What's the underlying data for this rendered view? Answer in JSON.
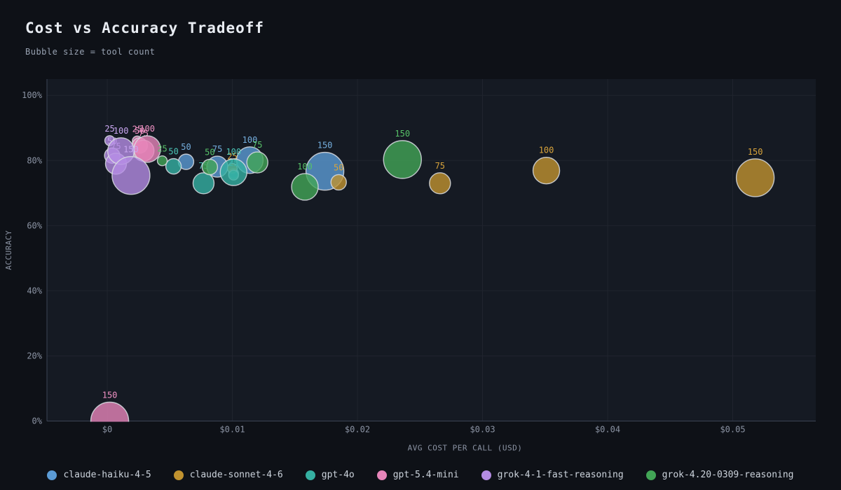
{
  "title": "Cost vs Accuracy Tradeoff",
  "subtitle": "Bubble size = tool count",
  "axes": {
    "x_label": "AVG COST PER CALL (USD)",
    "y_label": "ACCURACY",
    "x_ticks": [
      {
        "value": 0.0,
        "label": "$0"
      },
      {
        "value": 0.01,
        "label": "$0.01"
      },
      {
        "value": 0.02,
        "label": "$0.02"
      },
      {
        "value": 0.03,
        "label": "$0.03"
      },
      {
        "value": 0.04,
        "label": "$0.04"
      },
      {
        "value": 0.05,
        "label": "$0.05"
      }
    ],
    "y_ticks": [
      {
        "value": 0,
        "label": "0%"
      },
      {
        "value": 20,
        "label": "20%"
      },
      {
        "value": 40,
        "label": "40%"
      },
      {
        "value": 60,
        "label": "60%"
      },
      {
        "value": 80,
        "label": "80%"
      },
      {
        "value": 100,
        "label": "100%"
      }
    ],
    "x_range": [
      0,
      0.0566
    ],
    "y_range": [
      0,
      105
    ]
  },
  "chart_data": {
    "type": "scatter",
    "subtype": "bubble",
    "title": "Cost vs Accuracy Tradeoff",
    "xlabel": "AVG COST PER CALL (USD)",
    "ylabel": "ACCURACY",
    "size_field": "tools",
    "size_note": "Bubble size = tool count",
    "grid": true,
    "legend_position": "bottom",
    "series": [
      {
        "name": "claude-haiku-4-5",
        "color": "#5b9bd5",
        "label_color": "#74aede",
        "points": [
          {
            "cost": 0.0101,
            "accuracy": 76.0,
            "tools": 25
          },
          {
            "cost": 0.0063,
            "accuracy": 79.6,
            "tools": 50
          },
          {
            "cost": 0.0088,
            "accuracy": 78.1,
            "tools": 75
          },
          {
            "cost": 0.0114,
            "accuracy": 80.1,
            "tools": 100
          },
          {
            "cost": 0.0174,
            "accuracy": 76.7,
            "tools": 150
          }
        ]
      },
      {
        "name": "claude-sonnet-4-6",
        "color": "#c0922f",
        "label_color": "#d9a43b",
        "points": [
          {
            "cost": 0.01,
            "accuracy": 77.6,
            "tools": 25
          },
          {
            "cost": 0.0185,
            "accuracy": 73.3,
            "tools": 50
          },
          {
            "cost": 0.0266,
            "accuracy": 73.0,
            "tools": 75
          },
          {
            "cost": 0.0351,
            "accuracy": 76.9,
            "tools": 100
          },
          {
            "cost": 0.0518,
            "accuracy": 74.7,
            "tools": 150
          }
        ]
      },
      {
        "name": "gpt-4o",
        "color": "#35b0a2",
        "label_color": "#4cc6b8",
        "points": [
          {
            "cost": 0.0101,
            "accuracy": 75.5,
            "tools": 25
          },
          {
            "cost": 0.0053,
            "accuracy": 78.2,
            "tools": 50
          },
          {
            "cost": 0.0077,
            "accuracy": 73.0,
            "tools": 75
          },
          {
            "cost": 0.0101,
            "accuracy": 76.4,
            "tools": 100
          }
        ]
      },
      {
        "name": "gpt-5.4-mini",
        "color": "#e685b9",
        "label_color": "#f193c5",
        "points": [
          {
            "cost": 0.0024,
            "accuracy": 86.0,
            "tools": 25
          },
          {
            "cost": 0.0026,
            "accuracy": 84.6,
            "tools": 50
          },
          {
            "cost": 0.0029,
            "accuracy": 83.0,
            "tools": 75
          },
          {
            "cost": 0.0032,
            "accuracy": 83.5,
            "tools": 100
          },
          {
            "cost": 0.0002,
            "accuracy": 0.0,
            "tools": 150
          }
        ]
      },
      {
        "name": "grok-4-1-fast-reasoning",
        "color": "#b48ce3",
        "label_color": "#c9a6f0",
        "points": [
          {
            "cost": 0.0002,
            "accuracy": 86.1,
            "tools": 25
          },
          {
            "cost": 0.0004,
            "accuracy": 81.5,
            "tools": 50
          },
          {
            "cost": 0.0007,
            "accuracy": 79.0,
            "tools": 75
          },
          {
            "cost": 0.0011,
            "accuracy": 82.9,
            "tools": 100
          },
          {
            "cost": 0.0019,
            "accuracy": 75.4,
            "tools": 150
          }
        ]
      },
      {
        "name": "grok-4.20-0309-reasoning",
        "color": "#42a556",
        "label_color": "#57c268",
        "points": [
          {
            "cost": 0.0044,
            "accuracy": 79.9,
            "tools": 25
          },
          {
            "cost": 0.0082,
            "accuracy": 78.0,
            "tools": 50
          },
          {
            "cost": 0.012,
            "accuracy": 79.4,
            "tools": 75
          },
          {
            "cost": 0.0158,
            "accuracy": 71.9,
            "tools": 100
          },
          {
            "cost": 0.0236,
            "accuracy": 80.3,
            "tools": 150
          }
        ]
      }
    ]
  },
  "theme": {
    "page_bg": "#0e1117",
    "plot_bg": "#151a23",
    "grid_color": "#20242e",
    "axis_line_color": "#3c4454",
    "tick_color": "#8b93a3",
    "title_color": "#e9edf3",
    "subtitle_color": "#98a2b2",
    "bubble_stroke": "#d9dde3"
  }
}
